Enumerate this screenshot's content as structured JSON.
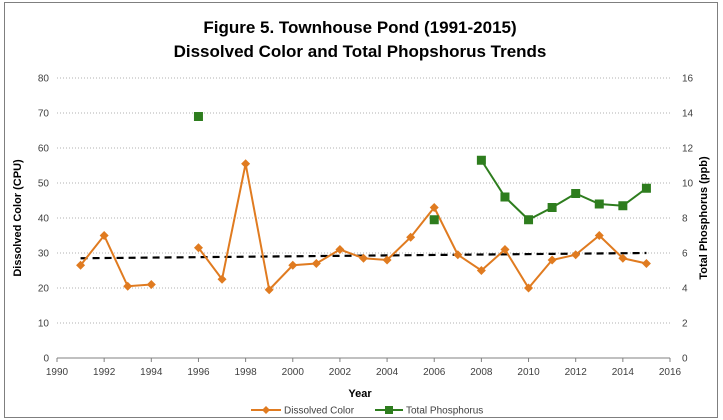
{
  "chart_data": {
    "type": "line",
    "title": "Figure 5. Townhouse Pond (1991-2015)",
    "subtitle": "Dissolved Color and Total Phopshorus Trends",
    "xlabel": "Year",
    "ylabel": "Dissolved Color (CPU)",
    "y2label": "Total Phosphorus (ppb)",
    "xlim": [
      1990,
      2016
    ],
    "ylim": [
      0,
      80
    ],
    "y2lim": [
      0,
      16
    ],
    "x_ticks": [
      "1990",
      "1992",
      "1994",
      "1996",
      "1998",
      "2000",
      "2002",
      "2004",
      "2006",
      "2008",
      "2010",
      "2012",
      "2014",
      "2016"
    ],
    "y_ticks": [
      "0",
      "10",
      "20",
      "30",
      "40",
      "50",
      "60",
      "70",
      "80"
    ],
    "y2_ticks": [
      "0",
      "2",
      "4",
      "6",
      "8",
      "10",
      "12",
      "14",
      "16"
    ],
    "grid": true,
    "legend_position": "bottom",
    "series": [
      {
        "name": "Dissolved Color",
        "axis": "left",
        "color": "#e07b20",
        "marker": "diamond",
        "segments": [
          [
            [
              1991,
              26.5
            ],
            [
              1992,
              35
            ],
            [
              1993,
              20.5
            ],
            [
              1994,
              21
            ]
          ],
          [
            [
              1996,
              31.5
            ],
            [
              1997,
              22.5
            ],
            [
              1998,
              55.5
            ],
            [
              1999,
              19.5
            ],
            [
              2000,
              26.5
            ],
            [
              2001,
              27
            ],
            [
              2002,
              31
            ],
            [
              2003,
              28.5
            ],
            [
              2004,
              28
            ],
            [
              2005,
              34.5
            ],
            [
              2006,
              43
            ],
            [
              2007,
              29.5
            ],
            [
              2008,
              25
            ],
            [
              2009,
              31
            ],
            [
              2010,
              20
            ],
            [
              2011,
              28
            ],
            [
              2012,
              29.5
            ],
            [
              2013,
              35
            ],
            [
              2014,
              28.5
            ],
            [
              2015,
              27
            ]
          ]
        ]
      },
      {
        "name": "Total Phosphorus",
        "axis": "right",
        "color": "#2e7d1e",
        "marker": "square",
        "segments": [
          [
            [
              1996,
              13.8
            ]
          ],
          [
            [
              2006,
              7.9
            ]
          ],
          [
            [
              2008,
              11.3
            ],
            [
              2009,
              9.2
            ],
            [
              2010,
              7.9
            ],
            [
              2011,
              8.6
            ],
            [
              2012,
              9.4
            ],
            [
              2013,
              8.8
            ],
            [
              2014,
              8.7
            ],
            [
              2015,
              9.7
            ]
          ]
        ]
      }
    ],
    "trendline": {
      "series": "Dissolved Color",
      "style": "dashed",
      "color": "#000000",
      "points": [
        [
          1991,
          28.5
        ],
        [
          2015,
          30
        ]
      ]
    }
  }
}
